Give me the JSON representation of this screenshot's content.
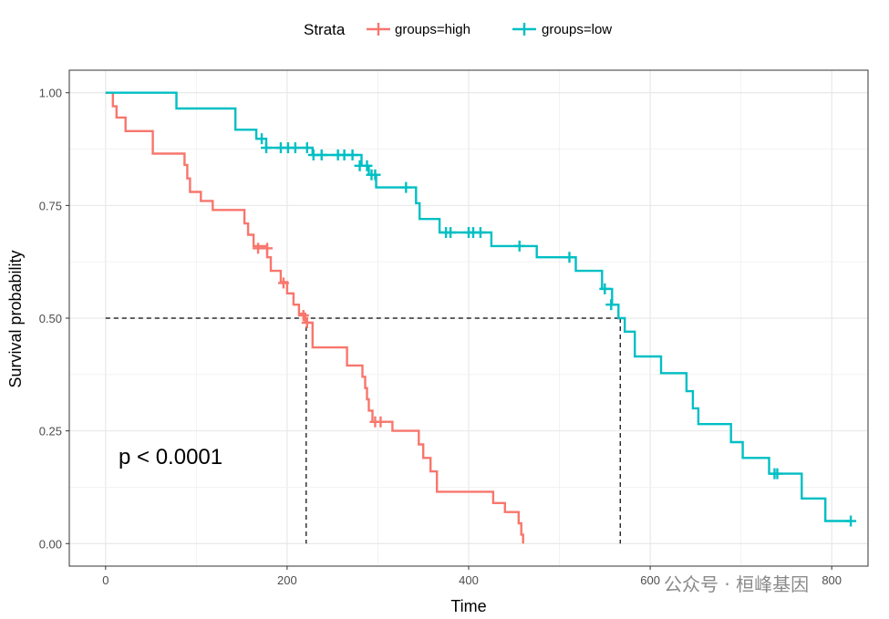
{
  "chart_data": {
    "type": "line",
    "subtype": "kaplan-meier",
    "xlabel": "Time",
    "ylabel": "Survival probability",
    "xlim": [
      -40,
      840
    ],
    "ylim": [
      -0.05,
      1.05
    ],
    "x_ticks": [
      0,
      200,
      400,
      600,
      800
    ],
    "y_ticks": [
      0.0,
      0.25,
      0.5,
      0.75,
      1.0
    ],
    "y_tick_labels": [
      "0.00",
      "0.25",
      "0.50",
      "0.75",
      "1.00"
    ],
    "legend": {
      "title": "Strata",
      "position": "top"
    },
    "annotation": "p < 0.0001",
    "median_line": 0.5,
    "grid": true,
    "series": [
      {
        "name": "groups=high",
        "color": "#F8766D",
        "steps": [
          [
            0,
            1.0
          ],
          [
            8,
            0.97
          ],
          [
            12,
            0.945
          ],
          [
            22,
            0.915
          ],
          [
            52,
            0.865
          ],
          [
            87,
            0.84
          ],
          [
            90,
            0.81
          ],
          [
            93,
            0.78
          ],
          [
            105,
            0.76
          ],
          [
            118,
            0.74
          ],
          [
            153,
            0.71
          ],
          [
            157,
            0.685
          ],
          [
            163,
            0.66
          ],
          [
            178,
            0.635
          ],
          [
            182,
            0.605
          ],
          [
            193,
            0.58
          ],
          [
            200,
            0.555
          ],
          [
            207,
            0.53
          ],
          [
            213,
            0.51
          ],
          [
            220,
            0.49
          ],
          [
            228,
            0.435
          ],
          [
            266,
            0.395
          ],
          [
            283,
            0.37
          ],
          [
            286,
            0.345
          ],
          [
            288,
            0.32
          ],
          [
            290,
            0.295
          ],
          [
            294,
            0.27
          ],
          [
            316,
            0.25
          ],
          [
            345,
            0.22
          ],
          [
            350,
            0.19
          ],
          [
            358,
            0.16
          ],
          [
            365,
            0.115
          ],
          [
            427,
            0.09
          ],
          [
            440,
            0.07
          ],
          [
            455,
            0.045
          ],
          [
            458,
            0.02
          ],
          [
            460,
            0.0
          ]
        ],
        "censored": [
          [
            168,
            0.655
          ],
          [
            178,
            0.655
          ],
          [
            196,
            0.578
          ],
          [
            218,
            0.506
          ],
          [
            222,
            0.49
          ],
          [
            297,
            0.27
          ],
          [
            303,
            0.27
          ]
        ]
      },
      {
        "name": "groups=low",
        "color": "#00BFC4",
        "steps": [
          [
            0,
            1.0
          ],
          [
            78,
            0.965
          ],
          [
            143,
            0.918
          ],
          [
            166,
            0.898
          ],
          [
            177,
            0.878
          ],
          [
            228,
            0.862
          ],
          [
            282,
            0.838
          ],
          [
            290,
            0.818
          ],
          [
            298,
            0.79
          ],
          [
            342,
            0.755
          ],
          [
            346,
            0.72
          ],
          [
            368,
            0.69
          ],
          [
            425,
            0.66
          ],
          [
            475,
            0.635
          ],
          [
            518,
            0.605
          ],
          [
            547,
            0.565
          ],
          [
            558,
            0.53
          ],
          [
            565,
            0.5
          ],
          [
            572,
            0.47
          ],
          [
            583,
            0.415
          ],
          [
            612,
            0.378
          ],
          [
            640,
            0.338
          ],
          [
            647,
            0.3
          ],
          [
            653,
            0.265
          ],
          [
            689,
            0.225
          ],
          [
            702,
            0.19
          ],
          [
            731,
            0.155
          ],
          [
            767,
            0.1
          ],
          [
            793,
            0.05
          ]
        ],
        "censored": [
          [
            172,
            0.898
          ],
          [
            177,
            0.878
          ],
          [
            193,
            0.878
          ],
          [
            201,
            0.878
          ],
          [
            209,
            0.878
          ],
          [
            222,
            0.878
          ],
          [
            229,
            0.862
          ],
          [
            238,
            0.862
          ],
          [
            256,
            0.862
          ],
          [
            263,
            0.862
          ],
          [
            272,
            0.862
          ],
          [
            280,
            0.838
          ],
          [
            288,
            0.838
          ],
          [
            293,
            0.818
          ],
          [
            297,
            0.818
          ],
          [
            331,
            0.79
          ],
          [
            375,
            0.69
          ],
          [
            380,
            0.69
          ],
          [
            400,
            0.69
          ],
          [
            405,
            0.69
          ],
          [
            413,
            0.69
          ],
          [
            456,
            0.66
          ],
          [
            511,
            0.635
          ],
          [
            550,
            0.565
          ],
          [
            557,
            0.53
          ],
          [
            737,
            0.155
          ],
          [
            740,
            0.155
          ],
          [
            821,
            0.05
          ]
        ]
      }
    ],
    "medians": [
      {
        "name": "groups=high",
        "x": 221
      },
      {
        "name": "groups=low",
        "x": 567
      }
    ]
  },
  "watermark": "公众号 · 桓峰基因"
}
